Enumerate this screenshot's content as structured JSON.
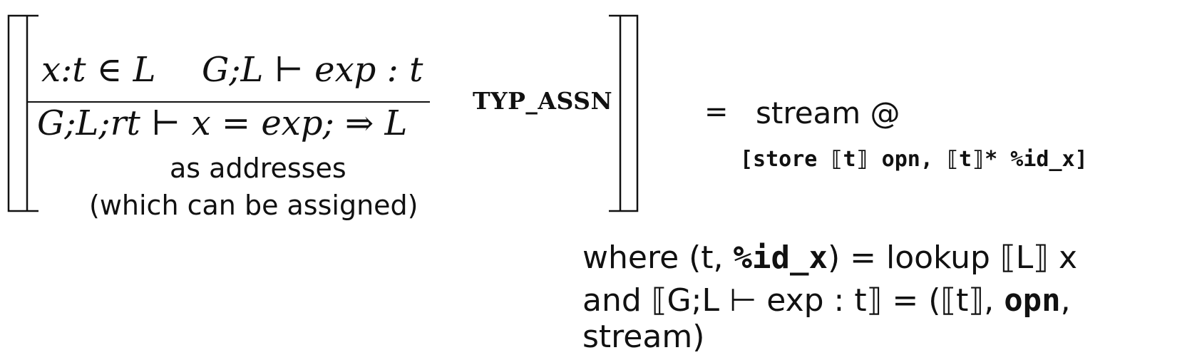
{
  "rule": {
    "premise_1": "x:t ∈ L",
    "premise_2": "G;L ⊢ exp : t",
    "conclusion": "G;L;rt ⊢ x = exp; ⇒ L",
    "name": "TYP_ASSN",
    "note_line_1": "as addresses",
    "note_line_2": "(which can be assigned)"
  },
  "rhs": {
    "equals": "=",
    "line_1": "stream @",
    "line_2": "[store ⟦t⟧ opn, ⟦t⟧* %id_x]"
  },
  "where": {
    "line_1_pre": "where (t, ",
    "line_1_code": "%id_x",
    "line_1_post": ") = lookup ⟦L⟧ x",
    "line_2_pre": "and ⟦G;L ⊢ exp : t⟧ = (⟦t⟧, ",
    "line_2_code": "opn",
    "line_2_post": ", stream)"
  }
}
